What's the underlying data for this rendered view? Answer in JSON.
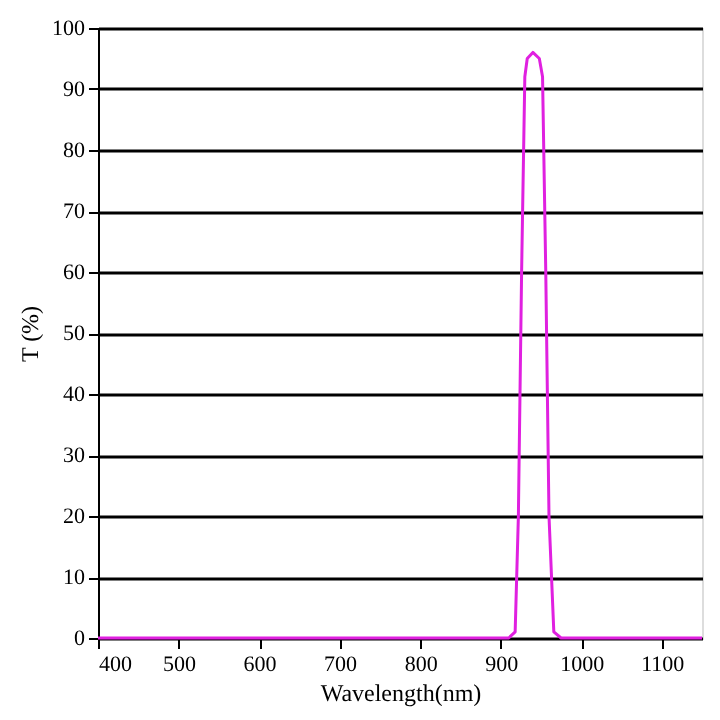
{
  "chart_data": {
    "type": "line",
    "xlabel": "Wavelength(nm)",
    "ylabel": "T (%)",
    "xlim": [
      400,
      1150
    ],
    "xticks": [
      400,
      500,
      600,
      700,
      800,
      900,
      1000,
      1100
    ],
    "ylim": [
      0,
      100
    ],
    "yticks": [
      0,
      10,
      20,
      30,
      40,
      50,
      60,
      70,
      80,
      90,
      100
    ],
    "grid": "y",
    "marker": "none",
    "line_style": "solid",
    "series": [
      {
        "color": "#e020e0",
        "x": [
          400,
          600,
          800,
          910,
          918,
          922,
          926,
          930,
          933,
          940,
          948,
          952,
          956,
          960,
          966,
          975,
          1050,
          1150
        ],
        "values": [
          0,
          0,
          0,
          0,
          1,
          20,
          60,
          92,
          95,
          96,
          95,
          92,
          60,
          20,
          1,
          0,
          0,
          0
        ]
      }
    ]
  }
}
